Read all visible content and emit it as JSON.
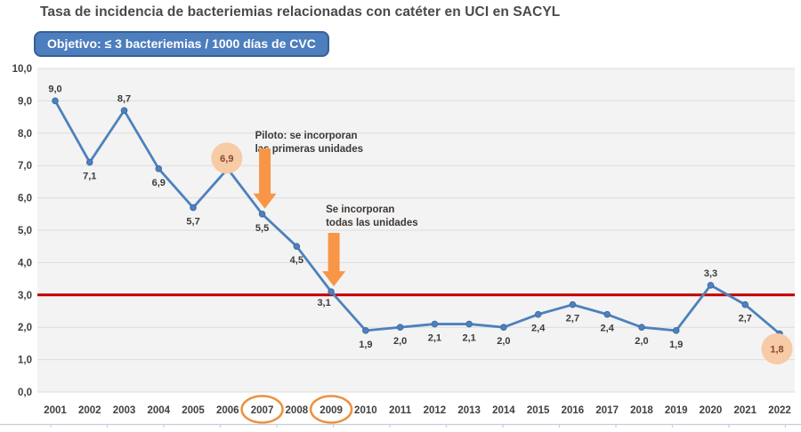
{
  "page": {
    "title": "Tasa de incidencia de bacteriemias relacionadas con catéter en UCI en SACYL"
  },
  "objective_badge": {
    "label": "Objetivo: ≤ 3 bacteriemias / 1000 días de CVC"
  },
  "colors": {
    "line": "#4e81bd",
    "marker_stroke": "#3d6da5",
    "target_line": "#c00000",
    "arrow": "#f79646",
    "highlight_circle": "#f6cba5",
    "highlight_label_text": "#8a4632",
    "label_text": "#3b3b3b",
    "annotation_text": "#3d3835",
    "axis_text": "#404040",
    "plot_bg": "#f3f3f3",
    "gridline": "#dddddd",
    "circle_outline": "#ed9140",
    "badge_bg": "#4d7ebd",
    "badge_border": "#365f94",
    "bottom_axis": "#c7cedb"
  },
  "chart_data": {
    "type": "line",
    "title": "Tasa de incidencia de bacteriemias relacionadas con catéter en UCI en SACYL",
    "xlabel": "",
    "ylabel": "",
    "ylim": [
      0,
      10
    ],
    "ytick_step": 1,
    "ytick_labels": [
      "0,0",
      "1,0",
      "2,0",
      "3,0",
      "4,0",
      "5,0",
      "6,0",
      "7,0",
      "8,0",
      "9,0",
      "10,0"
    ],
    "grid": true,
    "legend": "none",
    "categories": [
      "2001",
      "2002",
      "2003",
      "2004",
      "2005",
      "2006",
      "2007",
      "2008",
      "2009",
      "2010",
      "2011",
      "2012",
      "2013",
      "2014",
      "2015",
      "2016",
      "2017",
      "2018",
      "2019",
      "2020",
      "2021",
      "2022"
    ],
    "values": [
      9.0,
      7.1,
      8.7,
      6.9,
      5.7,
      6.9,
      5.5,
      4.5,
      3.1,
      1.9,
      2.0,
      2.1,
      2.1,
      2.0,
      2.4,
      2.7,
      2.4,
      2.0,
      1.9,
      3.3,
      2.7,
      1.8
    ],
    "value_labels": [
      "9,0",
      "7,1",
      "8,7",
      "6,9",
      "5,7",
      "6,9",
      "5,5",
      "4,5",
      "3,1",
      "1,9",
      "2,0",
      "2,1",
      "2,1",
      "2,0",
      "2,4",
      "2,7",
      "2,4",
      "2,0",
      "1,9",
      "3,3",
      "2,7",
      "1,8"
    ],
    "label_positions": [
      "above",
      "below",
      "above",
      "below",
      "below",
      "above",
      "below",
      "below",
      "below",
      "below",
      "below",
      "below",
      "below",
      "below",
      "below",
      "below",
      "below",
      "below",
      "below",
      "above",
      "below",
      "below"
    ],
    "highlighted_points": [
      {
        "category": "2006",
        "label": "6,9"
      },
      {
        "category": "2022",
        "label": "1,8"
      }
    ],
    "circled_categories": [
      "2007",
      "2009"
    ],
    "target_line": {
      "value": 3,
      "label": "Objetivo: ≤ 3 bacteriemias / 1000 días de CVC"
    },
    "annotations": [
      {
        "lines": [
          "Piloto: se incorporan",
          "las primeras unidades"
        ],
        "points_to_category": "2007"
      },
      {
        "lines": [
          "Se incorporan",
          "todas las unidades"
        ],
        "points_to_category": "2009"
      }
    ]
  }
}
